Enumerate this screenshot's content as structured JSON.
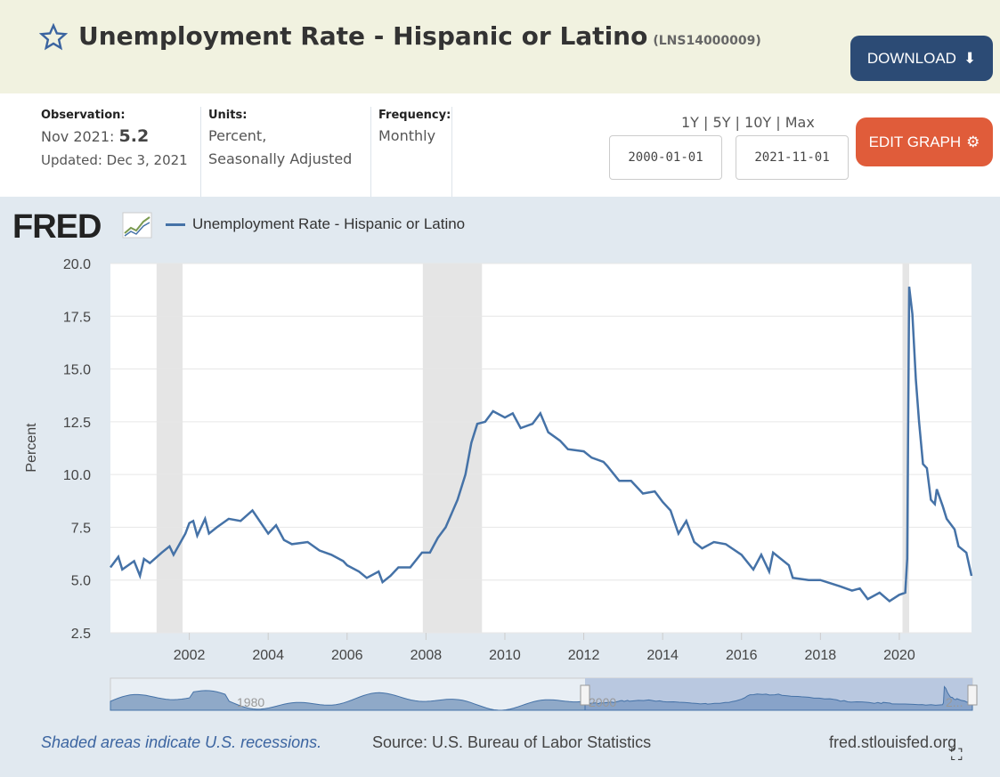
{
  "header": {
    "title": "Unemployment Rate - Hispanic or Latino",
    "series_id": "(LNS14000009)",
    "download_label": "DOWNLOAD"
  },
  "info": {
    "observation_label": "Observation:",
    "observation_date": "Nov 2021:",
    "observation_value": "5.2",
    "updated": "Updated: Dec 3, 2021",
    "units_label": "Units:",
    "units_line1": "Percent,",
    "units_line2": "Seasonally Adjusted",
    "frequency_label": "Frequency:",
    "frequency": "Monthly"
  },
  "controls": {
    "ranges": "1Y | 5Y | 10Y | Max",
    "start_date": "2000-01-01",
    "end_date": "2021-11-01",
    "edit_label": "EDIT GRAPH"
  },
  "logo": "FRED",
  "footer": {
    "note": "Shaded areas indicate U.S. recessions.",
    "source": "Source: U.S. Bureau of Labor Statistics",
    "site": "fred.stlouisfed.org"
  },
  "navigator": {
    "labels": [
      "1980",
      "2000",
      "2..."
    ]
  },
  "colors": {
    "line": "#4572a7",
    "recession": "#e5e5e5",
    "header_bg": "#f1f2e0",
    "download": "#2c4b75",
    "edit": "#e05c3a"
  },
  "chart_data": {
    "type": "line",
    "title": "Unemployment Rate - Hispanic or Latino",
    "xlabel": "",
    "ylabel": "Percent",
    "xlim": [
      2000.0,
      2021.83
    ],
    "ylim": [
      2.5,
      20.0
    ],
    "yticks": [
      "2.5",
      "5.0",
      "7.5",
      "10.0",
      "12.5",
      "15.0",
      "17.5",
      "20.0"
    ],
    "xticks": [
      "2002",
      "2004",
      "2006",
      "2008",
      "2010",
      "2012",
      "2014",
      "2016",
      "2018",
      "2020"
    ],
    "grid": true,
    "legend": "top-left",
    "recessions": [
      [
        2001.17,
        2001.83
      ],
      [
        2007.92,
        2009.42
      ],
      [
        2020.08,
        2020.25
      ]
    ],
    "series": [
      {
        "name": "Unemployment Rate - Hispanic or Latino",
        "x": [
          2000.0,
          2000.2,
          2000.3,
          2000.6,
          2000.75,
          2000.85,
          2001.0,
          2001.3,
          2001.5,
          2001.6,
          2001.9,
          2002.0,
          2002.1,
          2002.2,
          2002.4,
          2002.5,
          2002.7,
          2003.0,
          2003.3,
          2003.6,
          2004.0,
          2004.2,
          2004.4,
          2004.6,
          2005.0,
          2005.3,
          2005.6,
          2005.9,
          2006.0,
          2006.3,
          2006.5,
          2006.8,
          2006.9,
          2007.1,
          2007.3,
          2007.6,
          2007.9,
          2008.1,
          2008.3,
          2008.5,
          2008.8,
          2009.0,
          2009.15,
          2009.3,
          2009.5,
          2009.7,
          2010.0,
          2010.2,
          2010.4,
          2010.7,
          2010.9,
          2011.1,
          2011.4,
          2011.6,
          2012.0,
          2012.2,
          2012.5,
          2012.6,
          2012.9,
          2013.2,
          2013.5,
          2013.8,
          2014.0,
          2014.2,
          2014.4,
          2014.6,
          2014.8,
          2015.0,
          2015.3,
          2015.6,
          2016.0,
          2016.3,
          2016.5,
          2016.7,
          2016.8,
          2017.2,
          2017.3,
          2017.7,
          2018.0,
          2018.5,
          2018.8,
          2019.0,
          2019.2,
          2019.5,
          2019.75,
          2020.0,
          2020.15,
          2020.2,
          2020.25,
          2020.33,
          2020.42,
          2020.5,
          2020.6,
          2020.7,
          2020.8,
          2020.9,
          2020.95,
          2021.1,
          2021.2,
          2021.4,
          2021.5,
          2021.7,
          2021.83
        ],
        "y": [
          5.6,
          6.1,
          5.5,
          5.9,
          5.2,
          6.0,
          5.8,
          6.3,
          6.6,
          6.2,
          7.2,
          7.7,
          7.8,
          7.1,
          7.9,
          7.2,
          7.5,
          7.9,
          7.8,
          8.3,
          7.2,
          7.6,
          6.9,
          6.7,
          6.8,
          6.4,
          6.2,
          5.9,
          5.7,
          5.4,
          5.1,
          5.4,
          4.9,
          5.2,
          5.6,
          5.6,
          6.3,
          6.3,
          7.0,
          7.5,
          8.8,
          10.0,
          11.5,
          12.4,
          12.5,
          13.0,
          12.7,
          12.9,
          12.2,
          12.4,
          12.9,
          12.0,
          11.6,
          11.2,
          11.1,
          10.8,
          10.6,
          10.4,
          9.7,
          9.7,
          9.1,
          9.2,
          8.7,
          8.3,
          7.2,
          7.8,
          6.8,
          6.5,
          6.8,
          6.7,
          6.2,
          5.5,
          6.2,
          5.4,
          6.3,
          5.7,
          5.1,
          5.0,
          5.0,
          4.7,
          4.5,
          4.6,
          4.1,
          4.4,
          4.0,
          4.3,
          4.4,
          6.0,
          18.9,
          17.6,
          14.5,
          12.5,
          10.5,
          10.3,
          8.8,
          8.6,
          9.3,
          8.5,
          7.9,
          7.4,
          6.6,
          6.3,
          5.2
        ]
      }
    ]
  }
}
